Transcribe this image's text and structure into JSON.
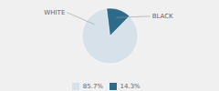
{
  "chart_data": {
    "type": "pie",
    "categories": [
      "WHITE",
      "BLACK"
    ],
    "values": [
      85.7,
      14.3
    ],
    "value_labels": [
      "85.7%",
      "14.3%"
    ],
    "colors": [
      "#d6e1ea",
      "#2e6b8a"
    ],
    "legend": "bottom"
  }
}
